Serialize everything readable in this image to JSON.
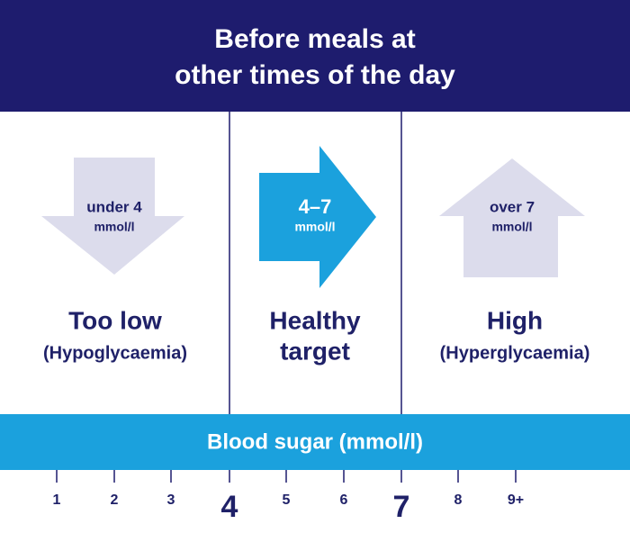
{
  "header": {
    "title": [
      "Before meals at",
      "other times of the day"
    ]
  },
  "zones": [
    {
      "range": "under 4",
      "unit": "mmol/l",
      "label": [
        "Too low",
        "(Hypoglycaemia)"
      ]
    },
    {
      "range": "4–7",
      "unit": "mmol/l",
      "label": [
        "Healthy",
        "target"
      ]
    },
    {
      "range": "over 7",
      "unit": "mmol/l",
      "label": [
        "High",
        "(Hyperglycaemia)"
      ]
    }
  ],
  "scale": {
    "title": "Blood sugar (mmol/l)",
    "ticks": [
      "1",
      "2",
      "3",
      "4",
      "5",
      "6",
      "7",
      "8",
      "9+"
    ]
  }
}
